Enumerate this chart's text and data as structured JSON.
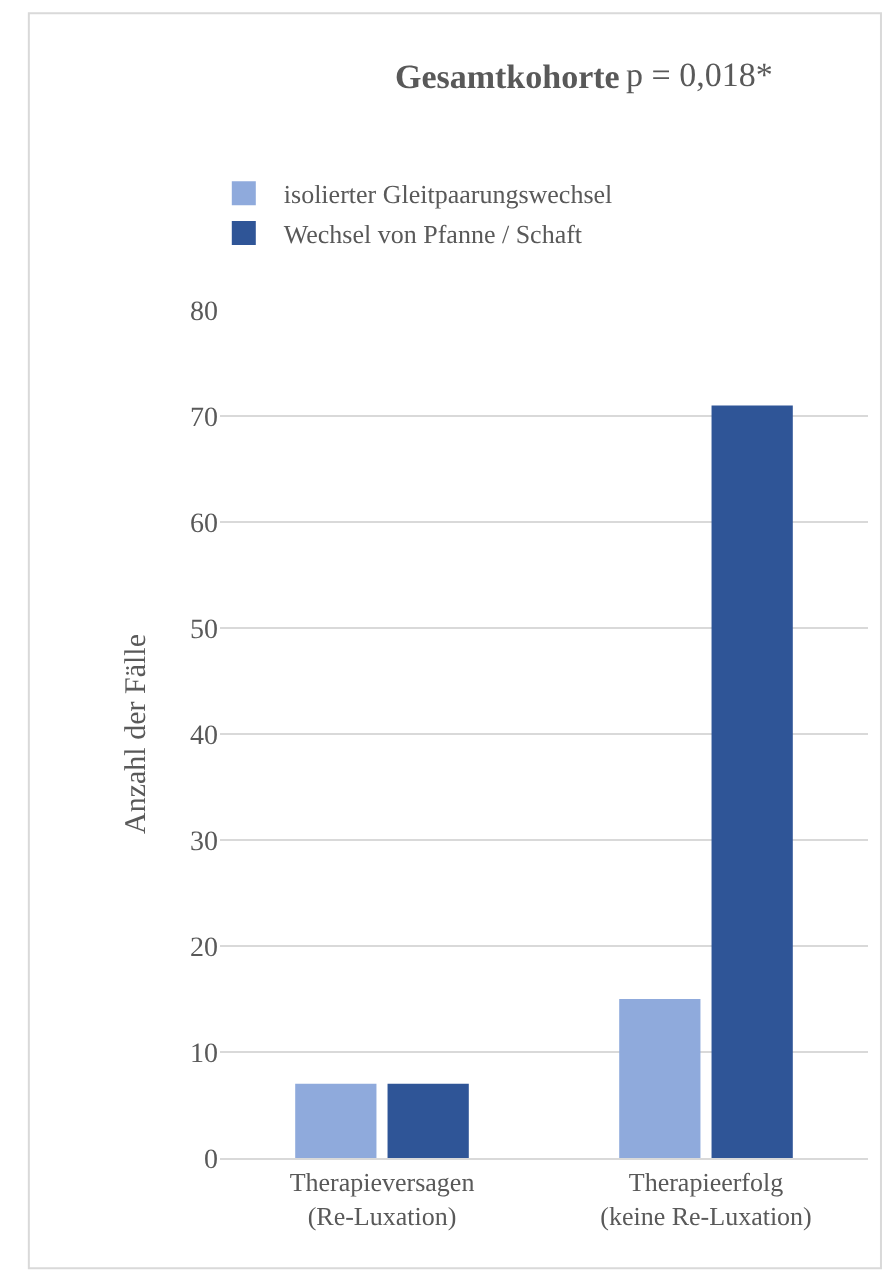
{
  "chart_data": {
    "type": "bar",
    "title": "Gesamtkohorte",
    "annotations": [
      "p = 0,018*"
    ],
    "ylabel": "Anzahl der Fälle",
    "categories": [
      "Therapieversagen\n(Re-Luxation)",
      "Therapieerfolg\n(keine Re-Luxation)"
    ],
    "series": [
      {
        "name": "isolierter Gleitpaarungswechsel",
        "color": "#8faadc",
        "values": [
          7,
          15
        ]
      },
      {
        "name": "Wechsel von Pfanne / Schaft",
        "color": "#2f5597",
        "values": [
          7,
          71
        ]
      }
    ],
    "ylim": [
      0,
      80
    ],
    "yticks": [
      0,
      10,
      20,
      30,
      40,
      50,
      60,
      70,
      80
    ],
    "grid": "y",
    "legend": "top left"
  }
}
